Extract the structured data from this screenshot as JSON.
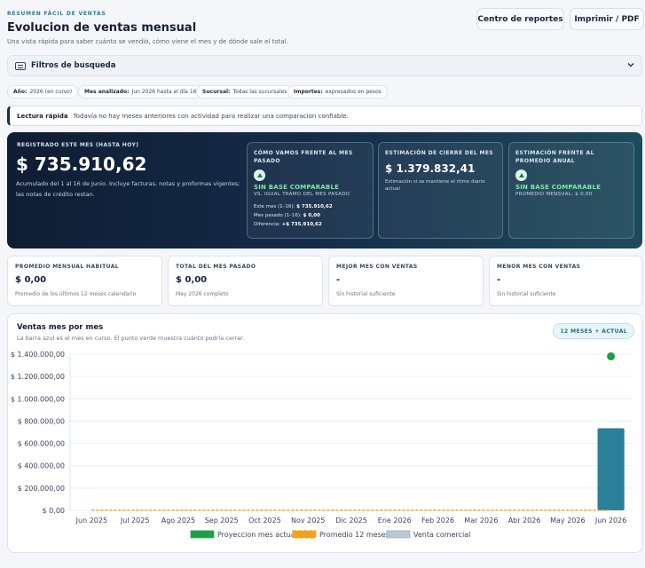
{
  "header": {
    "eyebrow": "RESUMEN FÁCIL DE VENTAS",
    "title": "Evolucion de ventas mensual",
    "subtitle": "Una vista rápida para saber cuánto se vendió, cómo viene el mes y de dónde sale el total.",
    "btn_reports": "Centro de reportes",
    "btn_print": "Imprimir / PDF"
  },
  "filters": {
    "label": "Filtros de busqueda"
  },
  "chips": [
    {
      "k": "Año:",
      "v": "2026 (en curso)"
    },
    {
      "k": "Mes analizado:",
      "v": "Jun 2026 hasta el día 16"
    },
    {
      "k": "Sucursal:",
      "v": "Todas las sucursales"
    },
    {
      "k": "Importes:",
      "v": "expresados en pesos"
    }
  ],
  "notice": {
    "title": "Lectura rápida",
    "text": "Todavía no hay meses anteriores con actividad para realizar una comparacion confiable."
  },
  "hero": {
    "label": "REGISTRADO ESTE MES (HASTA HOY)",
    "amount": "$ 735.910,62",
    "desc": "Acumulado del 1 al 16 de Junio. Incluye facturas, notas y proformas vigentes; las notas de crédito restan.",
    "m1": {
      "title": "CÓMO VAMOS FRENTE AL MES PASADO",
      "status": "SIN BASE COMPARABLE",
      "sub": "VS. IGUAL TRAMO DEL MES PASADO",
      "r1k": "Este mes (1–16):",
      "r1v": "$ 735.910,62",
      "r2k": "Mes pasado (1–16):",
      "r2v": "$ 0,00",
      "r3k": "Diferencia:",
      "r3v": "+$ 735.910,62"
    },
    "m2": {
      "title": "ESTIMACIÓN DE CIERRE DEL MES",
      "value": "$ 1.379.832,41",
      "note": "Estimación si se mantiene el ritmo diario actual"
    },
    "m3": {
      "title": "ESTIMACIÓN FRENTE AL PROMEDIO ANUAL",
      "status": "SIN BASE COMPARABLE",
      "sub": "PROMEDIO MENSUAL: $ 0,00"
    }
  },
  "cards": [
    {
      "k": "PROMEDIO MENSUAL HABITUAL",
      "v": "$ 0,00",
      "s": "Promedio de los últimos 12 meses calendario"
    },
    {
      "k": "TOTAL DEL MES PASADO",
      "v": "$ 0,00",
      "s": "May 2026 completo"
    },
    {
      "k": "MEJOR MES CON VENTAS",
      "v": "-",
      "s": "Sin historial suficiente"
    },
    {
      "k": "MENOR MES CON VENTAS",
      "v": "-",
      "s": "Sin historial suficiente"
    }
  ],
  "chart_card": {
    "title": "Ventas mes por mes",
    "subtitle": "La barra azul es el mes en curso. El punto verde muestra cuánto podría cerrar.",
    "pill": "12 MESES + ACTUAL"
  },
  "chart_data": {
    "type": "bar",
    "categories": [
      "Jun 2025",
      "Jul 2025",
      "Ago 2025",
      "Sep 2025",
      "Oct 2025",
      "Nov 2025",
      "Dic 2025",
      "Ene 2026",
      "Feb 2026",
      "Mar 2026",
      "Abr 2026",
      "May 2026",
      "Jun 2026"
    ],
    "series": [
      {
        "name": "Venta comercial",
        "type": "bar",
        "values": [
          0,
          0,
          0,
          0,
          0,
          0,
          0,
          0,
          0,
          0,
          0,
          0,
          735910.62
        ]
      },
      {
        "name": "Promedio 12 meses",
        "type": "line",
        "values": [
          0,
          0,
          0,
          0,
          0,
          0,
          0,
          0,
          0,
          0,
          0,
          0,
          0
        ]
      },
      {
        "name": "Proyeccion mes actual",
        "type": "point",
        "values": [
          null,
          null,
          null,
          null,
          null,
          null,
          null,
          null,
          null,
          null,
          null,
          null,
          1379832.41
        ]
      }
    ],
    "ylim": [
      0,
      1400000
    ],
    "yticks": [
      0,
      200000,
      400000,
      600000,
      800000,
      1000000,
      1200000,
      1400000
    ],
    "ytick_labels": [
      "$ 0,00",
      "$ 200.000,00",
      "$ 400.000,00",
      "$ 600.000,00",
      "$ 800.000,00",
      "$ 1.000.000,00",
      "$ 1.200.000,00",
      "$ 1.400.000,00"
    ],
    "colors": {
      "bar": "#2b7f98",
      "avg": "#f2a21a",
      "proj": "#1e9e4a",
      "legend_bar": "#b9c8d6"
    },
    "grid": true,
    "legend_position": "bottom"
  }
}
